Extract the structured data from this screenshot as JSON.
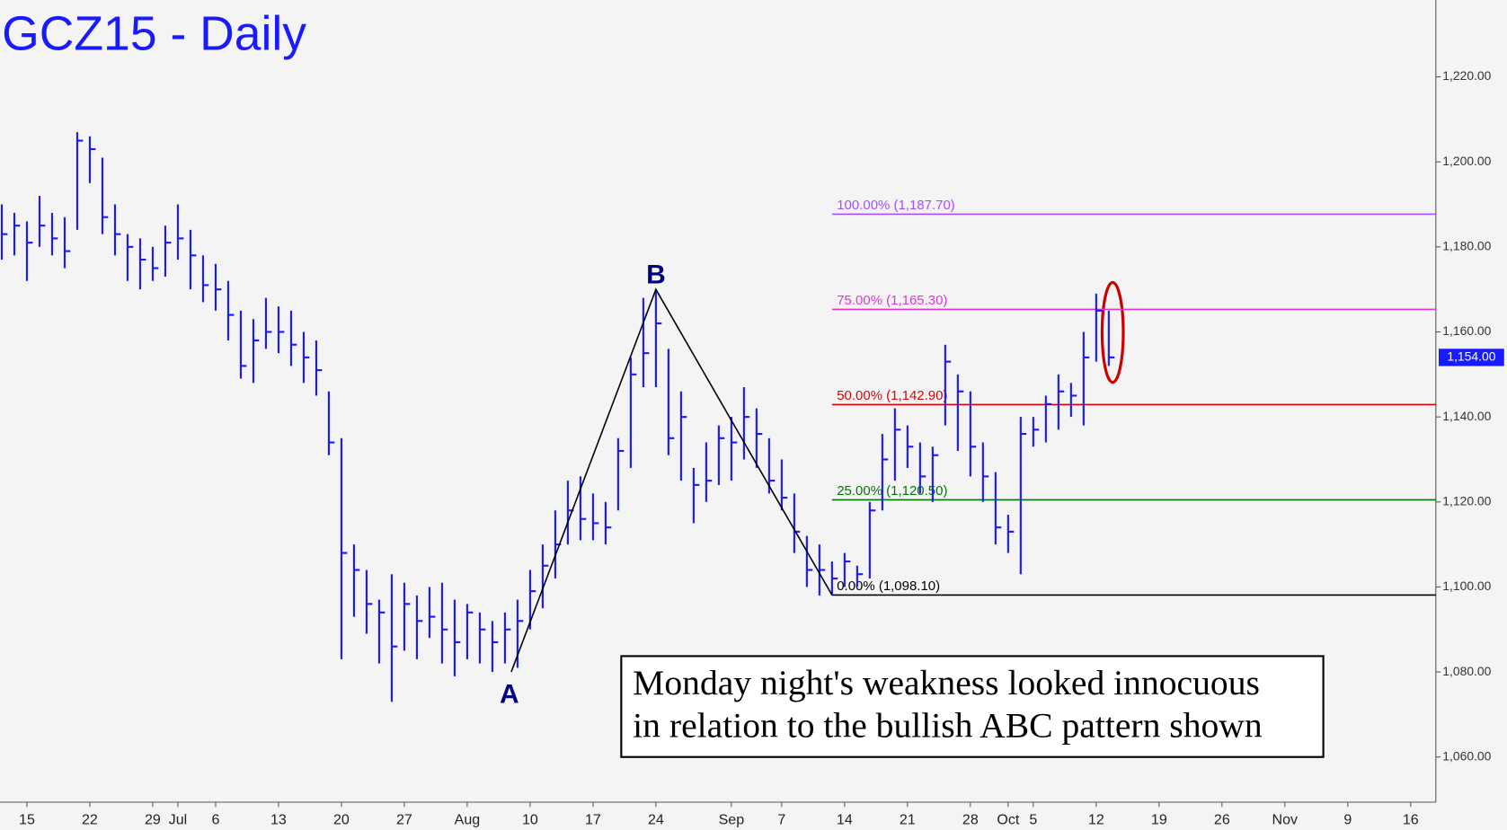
{
  "chart_data": {
    "type": "ohlc",
    "title": "GCZ15 - Daily",
    "color": "#1a1aff",
    "x": [
      -2,
      -1,
      0,
      1,
      2,
      3,
      4,
      5,
      6,
      7,
      8,
      9,
      10,
      11,
      12,
      13,
      14,
      15,
      16,
      17,
      18,
      19,
      20,
      21,
      22,
      23,
      24,
      25,
      26,
      27,
      28,
      29,
      30,
      31,
      32,
      33,
      34,
      35,
      36,
      37,
      38,
      39,
      40,
      41,
      42,
      43,
      44,
      45,
      46,
      47,
      48,
      49,
      50,
      51,
      52,
      53,
      54,
      55,
      56,
      57,
      58,
      59,
      60,
      61,
      62,
      63,
      64,
      65,
      66,
      67,
      68,
      69,
      70,
      71,
      72,
      73,
      74,
      75,
      76,
      77,
      78,
      79,
      80,
      81,
      82,
      83,
      84,
      85,
      86
    ],
    "high": [
      1190,
      1188,
      1186,
      1192,
      1188,
      1187,
      1207,
      1206,
      1201,
      1190,
      1183,
      1182,
      1180,
      1185,
      1190,
      1184,
      1178,
      1176,
      1172,
      1165,
      1163,
      1168,
      1166,
      1165,
      1160,
      1158,
      1146,
      1135,
      1110,
      1104,
      1097,
      1103,
      1101,
      1098,
      1100,
      1101,
      1097,
      1096,
      1094,
      1092,
      1094,
      1097,
      1104,
      1110,
      1118,
      1125,
      1126,
      1122,
      1120,
      1135,
      1154,
      1168,
      1170,
      1156,
      1146,
      1128,
      1134,
      1138,
      1140,
      1147,
      1142,
      1135,
      1130,
      1122,
      1112,
      1110,
      1106,
      1108,
      1105,
      1120,
      1136,
      1142,
      1138,
      1134,
      1133,
      1157,
      1150,
      1146,
      1134,
      1127,
      1117,
      1140,
      1140,
      1145,
      1150,
      1148,
      1160,
      1169,
      1165
    ],
    "low": [
      1177,
      1178,
      1172,
      1180,
      1178,
      1175,
      1184,
      1195,
      1183,
      1178,
      1172,
      1170,
      1172,
      1173,
      1177,
      1170,
      1167,
      1165,
      1158,
      1149,
      1148,
      1156,
      1155,
      1152,
      1148,
      1145,
      1131,
      1083,
      1093,
      1089,
      1082,
      1073,
      1085,
      1083,
      1088,
      1082,
      1079,
      1083,
      1082,
      1080,
      1082,
      1081,
      1090,
      1095,
      1102,
      1110,
      1111,
      1111,
      1110,
      1118,
      1128,
      1147,
      1147,
      1131,
      1125,
      1115,
      1120,
      1124,
      1125,
      1130,
      1128,
      1122,
      1118,
      1108,
      1100,
      1098,
      1098.1,
      1100,
      1100,
      1102,
      1118,
      1125,
      1128,
      1122,
      1120,
      1138,
      1132,
      1126,
      1120,
      1110,
      1108,
      1103,
      1133,
      1134,
      1137,
      1140,
      1138,
      1153,
      1152
    ],
    "close": [
      1183,
      1185,
      1181,
      1185,
      1182,
      1179,
      1205,
      1203,
      1187,
      1183,
      1180,
      1177,
      1175,
      1181,
      1182,
      1178,
      1171,
      1170,
      1164,
      1152,
      1158,
      1160,
      1160,
      1157,
      1154,
      1151,
      1134,
      1108,
      1104,
      1096,
      1094,
      1086,
      1096,
      1092,
      1093,
      1090,
      1087,
      1094,
      1090,
      1087,
      1090,
      1092,
      1099,
      1105,
      1110,
      1118,
      1116,
      1115,
      1114,
      1132,
      1150,
      1155,
      1162,
      1135,
      1140,
      1124,
      1125,
      1135,
      1134,
      1140,
      1136,
      1125,
      1121,
      1113,
      1104,
      1104,
      1102,
      1106,
      1103,
      1118,
      1130,
      1137,
      1133,
      1126,
      1131,
      1153,
      1146,
      1133,
      1126,
      1114,
      1113,
      1136,
      1137,
      1143,
      1146,
      1145,
      1154,
      1165,
      1154
    ],
    "xlim": [
      -2.14,
      112
    ],
    "xticks": [
      {
        "value": 0,
        "label": "15"
      },
      {
        "value": 5,
        "label": "22"
      },
      {
        "value": 10,
        "label": "29"
      },
      {
        "value": 12,
        "label": "Jul"
      },
      {
        "value": 15,
        "label": "6"
      },
      {
        "value": 20,
        "label": "13"
      },
      {
        "value": 25,
        "label": "20"
      },
      {
        "value": 30,
        "label": "27"
      },
      {
        "value": 35,
        "label": "Aug"
      },
      {
        "value": 40,
        "label": "10"
      },
      {
        "value": 45,
        "label": "17"
      },
      {
        "value": 50,
        "label": "24"
      },
      {
        "value": 56,
        "label": "Sep"
      },
      {
        "value": 60,
        "label": "7"
      },
      {
        "value": 65,
        "label": "14"
      },
      {
        "value": 70,
        "label": "21"
      },
      {
        "value": 75,
        "label": "28"
      },
      {
        "value": 78,
        "label": "Oct"
      },
      {
        "value": 80,
        "label": "5"
      },
      {
        "value": 85,
        "label": "12"
      },
      {
        "value": 90,
        "label": "19"
      },
      {
        "value": 95,
        "label": "26"
      },
      {
        "value": 100,
        "label": "Nov"
      },
      {
        "value": 105,
        "label": "9"
      },
      {
        "value": 110,
        "label": "16"
      }
    ],
    "ylim": [
      1049.38,
      1238.08
    ],
    "yticks": [
      {
        "value": 1060,
        "label": "1,060.00"
      },
      {
        "value": 1080,
        "label": "1,080.00"
      },
      {
        "value": 1100,
        "label": "1,100.00"
      },
      {
        "value": 1120,
        "label": "1,120.00"
      },
      {
        "value": 1140,
        "label": "1,140.00"
      },
      {
        "value": 1160,
        "label": "1,160.00"
      },
      {
        "value": 1180,
        "label": "1,180.00"
      },
      {
        "value": 1200,
        "label": "1,200.00"
      },
      {
        "value": 1220,
        "label": "1,220.00"
      }
    ],
    "levels": [
      {
        "value": 1187.7,
        "label": "100.00% (1,187.70)",
        "color": "#a64dff"
      },
      {
        "value": 1165.3,
        "label": "75.00% (1,165.30)",
        "color": "#e033e0"
      },
      {
        "value": 1142.9,
        "label": "50.00% (1,142.90)",
        "color": "#e00000"
      },
      {
        "value": 1120.5,
        "label": "25.00% (1,120.50)",
        "color": "#007700"
      },
      {
        "value": 1098.1,
        "label": "0.00% (1,098.10)",
        "color": "#000000"
      }
    ],
    "levels_start": 64,
    "pattern": {
      "labels": [
        "A",
        "B"
      ],
      "x": [
        38.5,
        50,
        64
      ],
      "y": [
        1080,
        1170,
        1098.1
      ]
    },
    "last_price": {
      "value": 1154,
      "label": "1,154.00"
    },
    "note": [
      "Monday night's weakness looked innocuous",
      "in relation to the bullish ABC pattern shown"
    ]
  }
}
